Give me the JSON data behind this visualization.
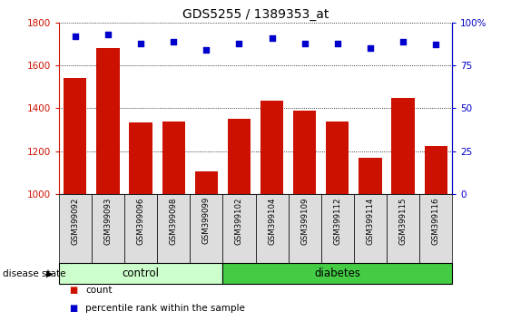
{
  "title": "GDS5255 / 1389353_at",
  "samples": [
    "GSM399092",
    "GSM399093",
    "GSM399096",
    "GSM399098",
    "GSM399099",
    "GSM399102",
    "GSM399104",
    "GSM399109",
    "GSM399112",
    "GSM399114",
    "GSM399115",
    "GSM399116"
  ],
  "counts": [
    1540,
    1680,
    1335,
    1340,
    1105,
    1350,
    1435,
    1390,
    1340,
    1170,
    1450,
    1225
  ],
  "percentile_ranks": [
    92,
    93,
    88,
    89,
    84,
    88,
    91,
    88,
    88,
    85,
    89,
    87
  ],
  "bar_color": "#cc1100",
  "dot_color": "#0000cc",
  "ylim_left": [
    1000,
    1800
  ],
  "ylim_right": [
    0,
    100
  ],
  "yticks_left": [
    1000,
    1200,
    1400,
    1600,
    1800
  ],
  "yticks_right": [
    0,
    25,
    50,
    75,
    100
  ],
  "control_count": 5,
  "diabetes_count": 7,
  "control_color": "#ccffcc",
  "diabetes_color": "#44cc44",
  "group_bar_color": "#dddddd",
  "label_count": "count",
  "label_percentile": "percentile rank within the sample",
  "disease_state_label": "disease state"
}
